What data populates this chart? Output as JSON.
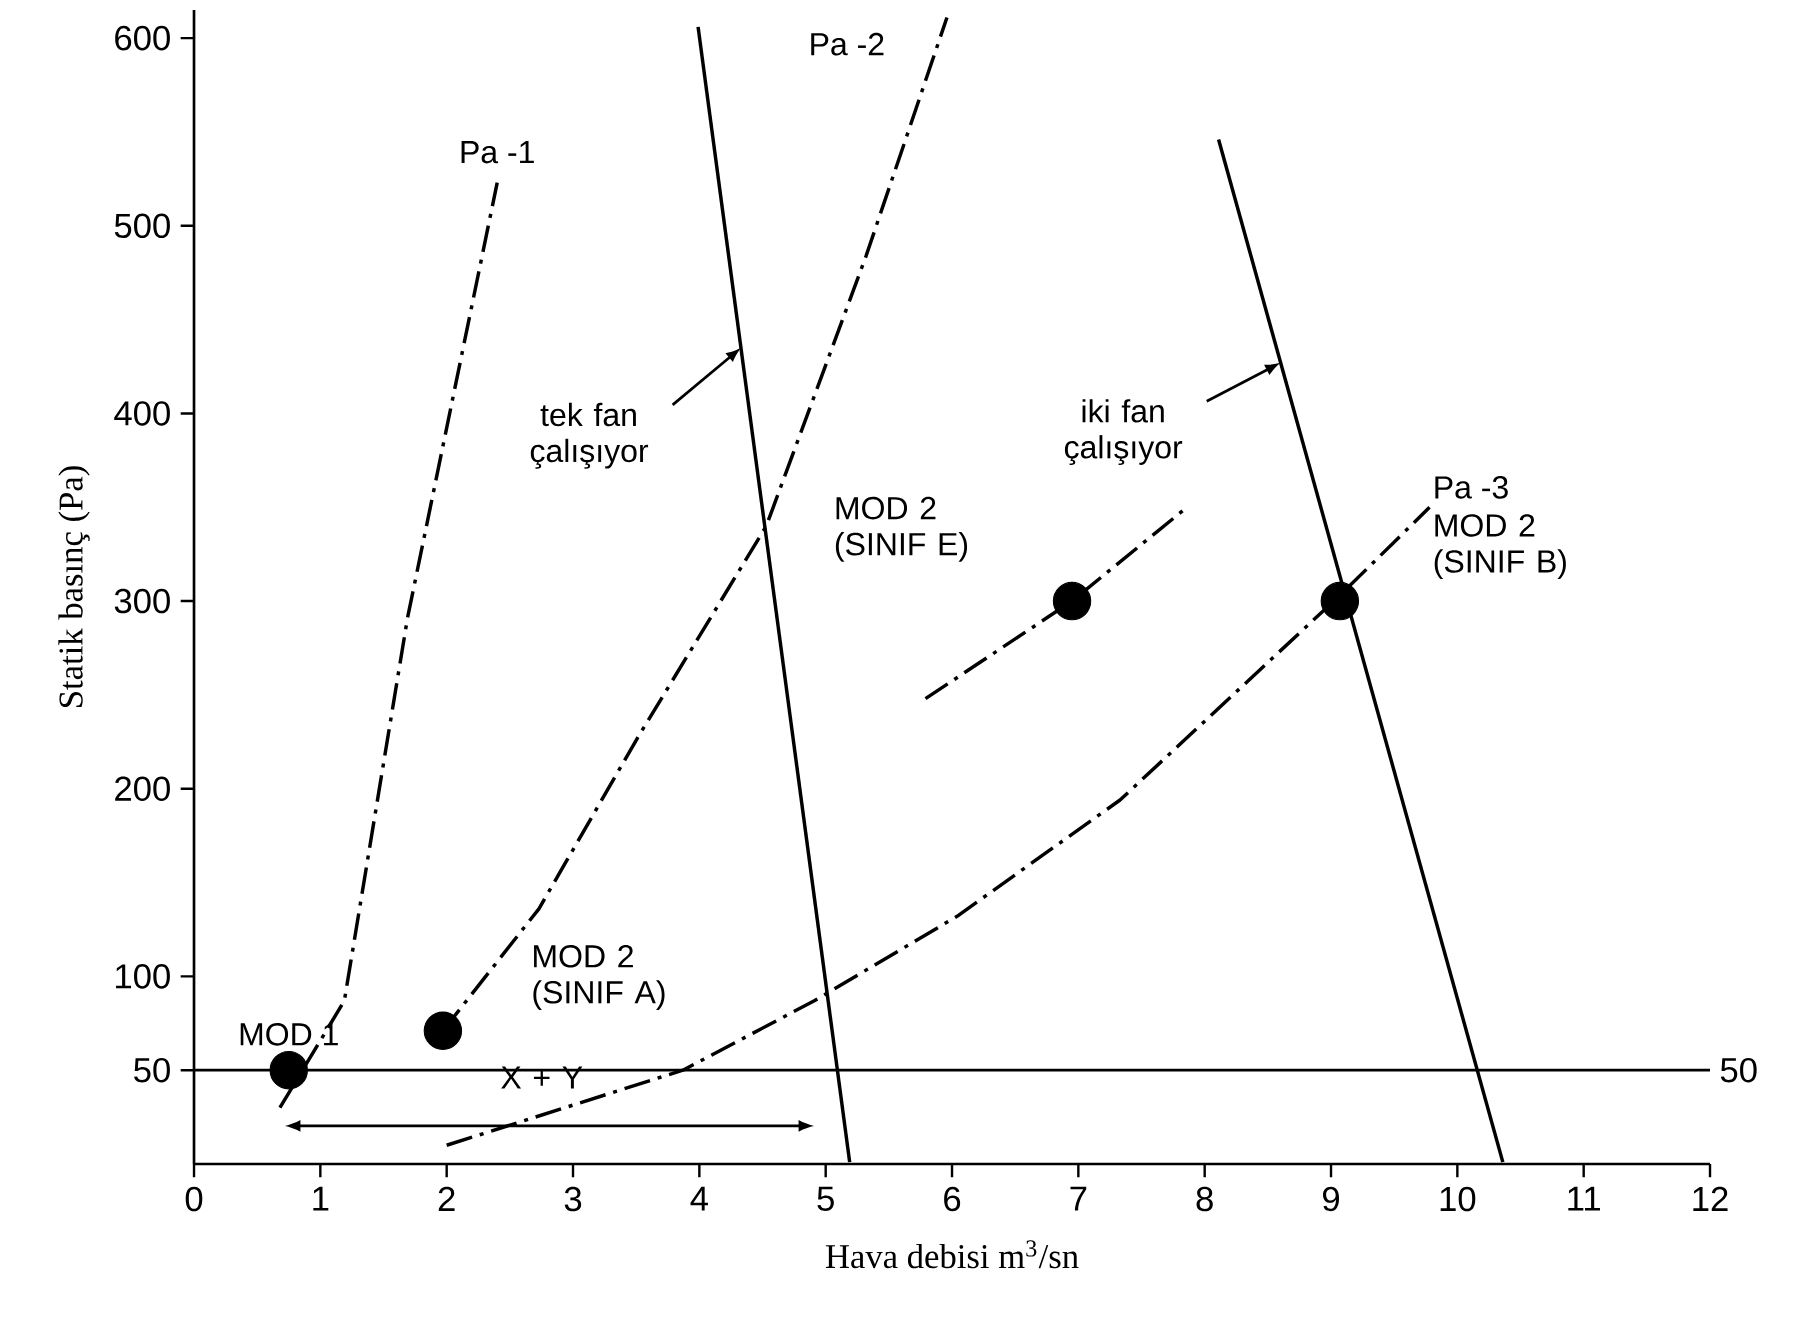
{
  "chart_data": {
    "type": "line",
    "xlabel": "Hava debisi m$^{3}$/sn",
    "ylabel": "Statik basınç (Pa)",
    "xlim": [
      0,
      12
    ],
    "ylim": [
      0,
      615
    ],
    "xticks": [
      0,
      1,
      2,
      3,
      4,
      5,
      6,
      7,
      8,
      9,
      10,
      11,
      12
    ],
    "yticks": [
      50,
      100,
      200,
      300,
      400,
      500,
      600
    ],
    "grid": false,
    "series": [
      {
        "name": "Pa -1",
        "color": "#000000",
        "line_style": "dashdot",
        "x": [
          0.68,
          1.19,
          1.69,
          2.4
        ],
        "values": [
          30,
          87,
          291,
          523
        ]
      },
      {
        "name": "Pa -2",
        "color": "#000000",
        "line_style": "dashdot",
        "x": [
          1.97,
          2.73,
          3.51,
          4.53,
          5.32,
          5.96
        ],
        "values": [
          71,
          136,
          227,
          340,
          484,
          611
        ]
      },
      {
        "name": "Pa -3",
        "color": "#000000",
        "line_style": "dashdot",
        "x": [
          2.0,
          3.87,
          4.91,
          6.04,
          7.33,
          8.24,
          9.07,
          9.78
        ],
        "values": [
          10,
          50,
          87,
          132,
          194,
          251,
          303,
          350
        ]
      },
      {
        "color": "#000000",
        "line_style": "dashdot",
        "x": [
          5.79,
          6.95,
          7.86
        ],
        "values": [
          248,
          300,
          350
        ]
      },
      {
        "color": "#000000",
        "line_style": "solid",
        "x": [
          3.99,
          5.19
        ],
        "values": [
          606,
          1
        ]
      },
      {
        "color": "#000000",
        "line_style": "solid",
        "x": [
          8.11,
          10.36
        ],
        "values": [
          546,
          1
        ]
      },
      {
        "type": "scatter",
        "color": "#000000",
        "marker": "circle",
        "x": [
          0.75,
          1.97,
          6.95,
          9.07
        ],
        "values": [
          50,
          71,
          300,
          300
        ]
      }
    ],
    "ref_lines": [
      {
        "axis": "y",
        "value": 50,
        "label": "50"
      }
    ],
    "annotations": [
      {
        "text": "MOD 1",
        "x": 0.75,
        "y": 50
      },
      "X + Y",
      {
        "text": "MOD 2 (SINIF A)",
        "x": 1.97,
        "y": 71
      },
      "MOD 2 (SINIF E)",
      "MOD 2 (SINIF B)",
      {
        "text": "tek fan çalışıyor",
        "x": 4.33,
        "y": 435
      },
      {
        "text": "iki fan çalışıyor",
        "x": 8.6,
        "y": 427
      }
    ]
  }
}
